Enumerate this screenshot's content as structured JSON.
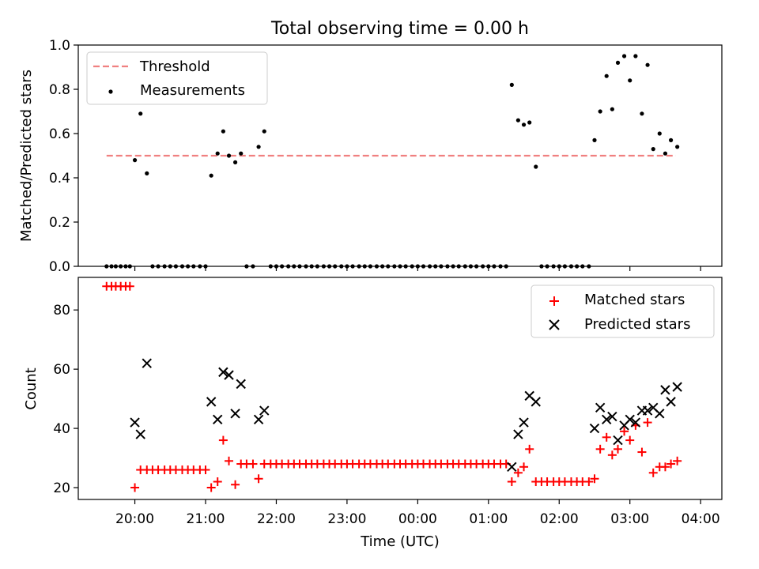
{
  "chart_data": [
    {
      "type": "scatter",
      "title": "Total observing time = 0.00 h",
      "ylabel": "Matched/Predicted stars",
      "xlabel": "",
      "ylim": [
        0,
        1.0
      ],
      "xlim": [
        -0.8,
        8.3
      ],
      "grid": false,
      "legend_placement": "top-left",
      "threshold": {
        "name": "Threshold",
        "value": 0.5,
        "x_range": [
          -0.4,
          7.65
        ],
        "color": "#f08080"
      },
      "y_ticks": [
        "0.0",
        "0.2",
        "0.4",
        "0.6",
        "0.8",
        "1.0"
      ],
      "series": [
        {
          "name": "Measurements",
          "color": "#000000",
          "points": [
            [
              -0.4,
              0
            ],
            [
              -0.33,
              0
            ],
            [
              -0.27,
              0
            ],
            [
              -0.2,
              0
            ],
            [
              -0.13,
              0
            ],
            [
              -0.07,
              0
            ],
            [
              0,
              0.48
            ],
            [
              0.08,
              0.69
            ],
            [
              0.17,
              0.42
            ],
            [
              0.25,
              0
            ],
            [
              0.33,
              0
            ],
            [
              0.42,
              0
            ],
            [
              0.5,
              0
            ],
            [
              0.58,
              0
            ],
            [
              0.67,
              0
            ],
            [
              0.75,
              0
            ],
            [
              0.83,
              0
            ],
            [
              0.92,
              0
            ],
            [
              1.0,
              0
            ],
            [
              1.08,
              0.41
            ],
            [
              1.17,
              0.51
            ],
            [
              1.25,
              0.61
            ],
            [
              1.33,
              0.5
            ],
            [
              1.42,
              0.47
            ],
            [
              1.5,
              0.51
            ],
            [
              1.58,
              0
            ],
            [
              1.67,
              0
            ],
            [
              1.75,
              0.54
            ],
            [
              1.83,
              0.61
            ],
            [
              1.92,
              0
            ],
            [
              2.0,
              0
            ],
            [
              2.08,
              0
            ],
            [
              2.17,
              0
            ],
            [
              2.25,
              0
            ],
            [
              2.33,
              0
            ],
            [
              2.42,
              0
            ],
            [
              2.5,
              0
            ],
            [
              2.58,
              0
            ],
            [
              2.67,
              0
            ],
            [
              2.75,
              0
            ],
            [
              2.83,
              0
            ],
            [
              2.92,
              0
            ],
            [
              3.0,
              0
            ],
            [
              3.08,
              0
            ],
            [
              3.17,
              0
            ],
            [
              3.25,
              0
            ],
            [
              3.33,
              0
            ],
            [
              3.42,
              0
            ],
            [
              3.5,
              0
            ],
            [
              3.58,
              0
            ],
            [
              3.67,
              0
            ],
            [
              3.75,
              0
            ],
            [
              3.83,
              0
            ],
            [
              3.92,
              0
            ],
            [
              4.0,
              0
            ],
            [
              4.08,
              0
            ],
            [
              4.17,
              0
            ],
            [
              4.25,
              0
            ],
            [
              4.33,
              0
            ],
            [
              4.42,
              0
            ],
            [
              4.5,
              0
            ],
            [
              4.58,
              0
            ],
            [
              4.67,
              0
            ],
            [
              4.75,
              0
            ],
            [
              4.83,
              0
            ],
            [
              4.92,
              0
            ],
            [
              5.0,
              0
            ],
            [
              5.08,
              0
            ],
            [
              5.17,
              0
            ],
            [
              5.25,
              0
            ],
            [
              5.33,
              0.82
            ],
            [
              5.42,
              0.66
            ],
            [
              5.5,
              0.64
            ],
            [
              5.58,
              0.65
            ],
            [
              5.67,
              0.45
            ],
            [
              5.75,
              0
            ],
            [
              5.83,
              0
            ],
            [
              5.92,
              0
            ],
            [
              6.0,
              0
            ],
            [
              6.08,
              0
            ],
            [
              6.17,
              0
            ],
            [
              6.25,
              0
            ],
            [
              6.33,
              0
            ],
            [
              6.42,
              0
            ],
            [
              6.5,
              0.57
            ],
            [
              6.58,
              0.7
            ],
            [
              6.67,
              0.86
            ],
            [
              6.75,
              0.71
            ],
            [
              6.83,
              0.92
            ],
            [
              6.92,
              0.95
            ],
            [
              7.0,
              0.84
            ],
            [
              7.08,
              0.95
            ],
            [
              7.17,
              0.69
            ],
            [
              7.25,
              0.91
            ],
            [
              7.33,
              0.53
            ],
            [
              7.42,
              0.6
            ],
            [
              7.5,
              0.51
            ],
            [
              7.58,
              0.57
            ],
            [
              7.67,
              0.54
            ]
          ]
        }
      ]
    },
    {
      "type": "scatter",
      "title": "",
      "ylabel": "Count",
      "xlabel": "Time (UTC)",
      "ylim": [
        16,
        91
      ],
      "xlim": [
        -0.8,
        8.3
      ],
      "grid": false,
      "legend_placement": "top-right",
      "y_ticks": [
        {
          "value": 20,
          "label": "20"
        },
        {
          "value": 40,
          "label": "40"
        },
        {
          "value": 60,
          "label": "60"
        },
        {
          "value": 80,
          "label": "80"
        }
      ],
      "x_ticks": [
        {
          "value": 0,
          "label": "20:00"
        },
        {
          "value": 1,
          "label": "21:00"
        },
        {
          "value": 2,
          "label": "22:00"
        },
        {
          "value": 3,
          "label": "23:00"
        },
        {
          "value": 4,
          "label": "00:00"
        },
        {
          "value": 5,
          "label": "01:00"
        },
        {
          "value": 6,
          "label": "02:00"
        },
        {
          "value": 7,
          "label": "03:00"
        },
        {
          "value": 8,
          "label": "04:00"
        }
      ],
      "series": [
        {
          "name": "Matched stars",
          "marker": "plus",
          "color": "#ff0000",
          "points": [
            [
              -0.4,
              88
            ],
            [
              -0.33,
              88
            ],
            [
              -0.27,
              88
            ],
            [
              -0.2,
              88
            ],
            [
              -0.13,
              88
            ],
            [
              -0.07,
              88
            ],
            [
              0,
              20
            ],
            [
              0.08,
              26
            ],
            [
              0.17,
              26
            ],
            [
              0.25,
              26
            ],
            [
              0.33,
              26
            ],
            [
              0.42,
              26
            ],
            [
              0.5,
              26
            ],
            [
              0.58,
              26
            ],
            [
              0.67,
              26
            ],
            [
              0.75,
              26
            ],
            [
              0.83,
              26
            ],
            [
              0.92,
              26
            ],
            [
              1.0,
              26
            ],
            [
              1.08,
              20
            ],
            [
              1.17,
              22
            ],
            [
              1.25,
              36
            ],
            [
              1.33,
              29
            ],
            [
              1.42,
              21
            ],
            [
              1.5,
              28
            ],
            [
              1.58,
              28
            ],
            [
              1.67,
              28
            ],
            [
              1.75,
              23
            ],
            [
              1.83,
              28
            ],
            [
              1.92,
              28
            ],
            [
              2.0,
              28
            ],
            [
              2.08,
              28
            ],
            [
              2.17,
              28
            ],
            [
              2.25,
              28
            ],
            [
              2.33,
              28
            ],
            [
              2.42,
              28
            ],
            [
              2.5,
              28
            ],
            [
              2.58,
              28
            ],
            [
              2.67,
              28
            ],
            [
              2.75,
              28
            ],
            [
              2.83,
              28
            ],
            [
              2.92,
              28
            ],
            [
              3.0,
              28
            ],
            [
              3.08,
              28
            ],
            [
              3.17,
              28
            ],
            [
              3.25,
              28
            ],
            [
              3.33,
              28
            ],
            [
              3.42,
              28
            ],
            [
              3.5,
              28
            ],
            [
              3.58,
              28
            ],
            [
              3.67,
              28
            ],
            [
              3.75,
              28
            ],
            [
              3.83,
              28
            ],
            [
              3.92,
              28
            ],
            [
              4.0,
              28
            ],
            [
              4.08,
              28
            ],
            [
              4.17,
              28
            ],
            [
              4.25,
              28
            ],
            [
              4.33,
              28
            ],
            [
              4.42,
              28
            ],
            [
              4.5,
              28
            ],
            [
              4.58,
              28
            ],
            [
              4.67,
              28
            ],
            [
              4.75,
              28
            ],
            [
              4.83,
              28
            ],
            [
              4.92,
              28
            ],
            [
              5.0,
              28
            ],
            [
              5.08,
              28
            ],
            [
              5.17,
              28
            ],
            [
              5.25,
              28
            ],
            [
              5.33,
              22
            ],
            [
              5.42,
              25
            ],
            [
              5.5,
              27
            ],
            [
              5.58,
              33
            ],
            [
              5.67,
              22
            ],
            [
              5.75,
              22
            ],
            [
              5.83,
              22
            ],
            [
              5.92,
              22
            ],
            [
              6.0,
              22
            ],
            [
              6.08,
              22
            ],
            [
              6.17,
              22
            ],
            [
              6.25,
              22
            ],
            [
              6.33,
              22
            ],
            [
              6.42,
              22
            ],
            [
              6.5,
              23
            ],
            [
              6.58,
              33
            ],
            [
              6.67,
              37
            ],
            [
              6.75,
              31
            ],
            [
              6.83,
              33
            ],
            [
              6.92,
              39
            ],
            [
              7.0,
              36
            ],
            [
              7.08,
              41
            ],
            [
              7.17,
              32
            ],
            [
              7.25,
              42
            ],
            [
              7.33,
              25
            ],
            [
              7.42,
              27
            ],
            [
              7.5,
              27
            ],
            [
              7.58,
              28
            ],
            [
              7.67,
              29
            ]
          ]
        },
        {
          "name": "Predicted stars",
          "marker": "x",
          "color": "#000000",
          "points": [
            [
              0,
              42
            ],
            [
              0.08,
              38
            ],
            [
              0.17,
              62
            ],
            [
              1.08,
              49
            ],
            [
              1.17,
              43
            ],
            [
              1.25,
              59
            ],
            [
              1.33,
              58
            ],
            [
              1.42,
              45
            ],
            [
              1.5,
              55
            ],
            [
              1.75,
              43
            ],
            [
              1.83,
              46
            ],
            [
              5.33,
              27
            ],
            [
              5.42,
              38
            ],
            [
              5.5,
              42
            ],
            [
              5.58,
              51
            ],
            [
              5.67,
              49
            ],
            [
              6.5,
              40
            ],
            [
              6.58,
              47
            ],
            [
              6.67,
              43
            ],
            [
              6.75,
              44
            ],
            [
              6.83,
              36
            ],
            [
              6.92,
              41
            ],
            [
              7.0,
              43
            ],
            [
              7.08,
              42
            ],
            [
              7.17,
              46
            ],
            [
              7.25,
              46
            ],
            [
              7.33,
              47
            ],
            [
              7.42,
              45
            ],
            [
              7.5,
              53
            ],
            [
              7.58,
              49
            ],
            [
              7.67,
              54
            ]
          ]
        }
      ]
    }
  ]
}
